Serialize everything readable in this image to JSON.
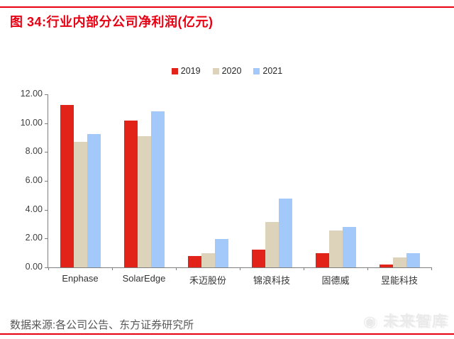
{
  "page": {
    "title": "图 34:行业内部分公司净利润(亿元)",
    "source_note": "数据来源:各公司公告、东方证券研究所",
    "watermark": "◉ 未来智库",
    "accent_color": "#e60012",
    "axis_color": "#7f7f7f"
  },
  "chart_data": {
    "type": "bar",
    "title": "行业内部分公司净利润(亿元)",
    "categories": [
      "Enphase",
      "SolarEdge",
      "禾迈股份",
      "锦浪科技",
      "固德威",
      "昱能科技"
    ],
    "series": [
      {
        "name": "2019",
        "color": "#e2231a",
        "values": [
          11.25,
          10.2,
          0.8,
          1.25,
          1.0,
          0.2
        ]
      },
      {
        "name": "2020",
        "color": "#ddd3bb",
        "values": [
          8.7,
          9.1,
          1.0,
          3.15,
          2.55,
          0.7
        ]
      },
      {
        "name": "2021",
        "color": "#a3c9fa",
        "values": [
          9.25,
          10.8,
          1.95,
          4.75,
          2.8,
          1.0
        ]
      }
    ],
    "ylabel": "",
    "xlabel": "",
    "ylim": [
      0,
      12
    ],
    "ytick_step": 2,
    "ytick_labels": [
      "0.00",
      "2.00",
      "4.00",
      "6.00",
      "8.00",
      "10.00",
      "12.00"
    ],
    "legend_position": "top-center",
    "grid": false
  }
}
